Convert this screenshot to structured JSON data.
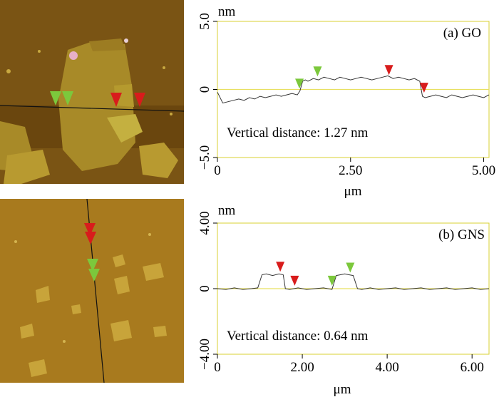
{
  "colors": {
    "axis_frame": "#d8d030",
    "zero_line": "#e8e060",
    "trace": "#333333",
    "marker_green": "#7cc83c",
    "marker_red": "#d81c1c",
    "afm_go_bg": "#7a5414",
    "afm_go_flake": "#a88a28",
    "afm_gns_bg": "#a87a1e",
    "afm_gns_flake": "#c8a43a"
  },
  "icons": {
    "marker_green": "down-triangle-green",
    "marker_red": "down-triangle-red"
  },
  "chart_data": [
    {
      "type": "line",
      "panel_label": "(a) GO",
      "y_unit": "nm",
      "xlabel": "μm",
      "xlim": [
        0,
        5.1
      ],
      "ylim": [
        -5.0,
        5.0
      ],
      "x_ticks": [
        0,
        2.5,
        5.0
      ],
      "x_tick_labels": [
        "0",
        "2.50",
        "5.00"
      ],
      "y_ticks": [
        5.0,
        0,
        -5.0
      ],
      "y_tick_labels": [
        "5.0",
        "0",
        "−5.0"
      ],
      "annotation": "Vertical distance: 1.27 nm",
      "series": [
        {
          "x": [
            0,
            0.1,
            0.2,
            0.3,
            0.4,
            0.5,
            0.6,
            0.7,
            0.8,
            0.9,
            1.0,
            1.1,
            1.2,
            1.3,
            1.4,
            1.5,
            1.55,
            1.6,
            1.65,
            1.7,
            1.8,
            1.9,
            2.0,
            2.1,
            2.2,
            2.3,
            2.4,
            2.5,
            2.6,
            2.7,
            2.8,
            2.9,
            3.0,
            3.1,
            3.2,
            3.3,
            3.4,
            3.5,
            3.6,
            3.7,
            3.8,
            3.85,
            3.9,
            4.0,
            4.1,
            4.2,
            4.3,
            4.4,
            4.5,
            4.6,
            4.7,
            4.8,
            4.9,
            5.0,
            5.1
          ],
          "y": [
            -0.2,
            -1.0,
            -0.9,
            -0.8,
            -0.7,
            -0.8,
            -0.6,
            -0.7,
            -0.5,
            -0.6,
            -0.5,
            -0.4,
            -0.5,
            -0.4,
            -0.3,
            -0.4,
            -0.1,
            0.6,
            0.7,
            0.6,
            0.8,
            0.7,
            0.9,
            0.8,
            0.7,
            0.9,
            0.8,
            0.7,
            0.8,
            0.9,
            0.8,
            0.7,
            0.8,
            0.9,
            1.0,
            0.8,
            0.9,
            0.8,
            0.7,
            0.8,
            0.6,
            -0.5,
            -0.6,
            -0.5,
            -0.4,
            -0.5,
            -0.6,
            -0.4,
            -0.5,
            -0.6,
            -0.5,
            -0.4,
            -0.5,
            -0.6,
            -0.4
          ]
        }
      ],
      "markers": [
        {
          "x": 1.54,
          "y": -0.1,
          "color": "green"
        },
        {
          "x": 1.88,
          "y": 0.8,
          "color": "green"
        },
        {
          "x": 3.22,
          "y": 0.9,
          "color": "red"
        },
        {
          "x": 3.88,
          "y": -0.4,
          "color": "red"
        }
      ]
    },
    {
      "type": "line",
      "panel_label": "(b) GNS",
      "y_unit": "nm",
      "xlabel": "μm",
      "xlim": [
        0,
        6.4
      ],
      "ylim": [
        -4.0,
        4.0
      ],
      "x_ticks": [
        0,
        2.0,
        4.0,
        6.0
      ],
      "x_tick_labels": [
        "0",
        "2.00",
        "4.00",
        "6.00"
      ],
      "y_ticks": [
        4.0,
        0,
        -4.0
      ],
      "y_tick_labels": [
        "4.00",
        "0",
        "−4.00"
      ],
      "annotation": "Vertical distance: 0.64 nm",
      "series": [
        {
          "x": [
            0,
            0.2,
            0.4,
            0.6,
            0.8,
            0.95,
            1.05,
            1.15,
            1.3,
            1.45,
            1.55,
            1.6,
            1.7,
            1.9,
            2.1,
            2.3,
            2.5,
            2.7,
            2.8,
            2.9,
            3.0,
            3.1,
            3.2,
            3.3,
            3.4,
            3.6,
            3.8,
            4.0,
            4.2,
            4.4,
            4.6,
            4.8,
            5.0,
            5.2,
            5.4,
            5.6,
            5.8,
            6.0,
            6.2,
            6.4
          ],
          "y": [
            0.0,
            -0.05,
            0.05,
            -0.05,
            0.0,
            0.05,
            0.85,
            0.9,
            0.8,
            0.9,
            0.85,
            0.0,
            -0.05,
            0.05,
            -0.05,
            0.0,
            0.05,
            -0.05,
            0.8,
            0.85,
            0.9,
            0.85,
            0.8,
            0.0,
            -0.05,
            0.05,
            -0.05,
            0.0,
            0.05,
            -0.05,
            0.0,
            0.05,
            -0.05,
            0.0,
            0.05,
            -0.05,
            0.0,
            0.05,
            -0.05,
            0.0
          ]
        }
      ],
      "markers": [
        {
          "x": 1.48,
          "y": 0.9,
          "color": "red"
        },
        {
          "x": 1.82,
          "y": 0.05,
          "color": "red"
        },
        {
          "x": 2.7,
          "y": 0.05,
          "color": "green"
        },
        {
          "x": 3.13,
          "y": 0.85,
          "color": "green"
        }
      ]
    }
  ]
}
